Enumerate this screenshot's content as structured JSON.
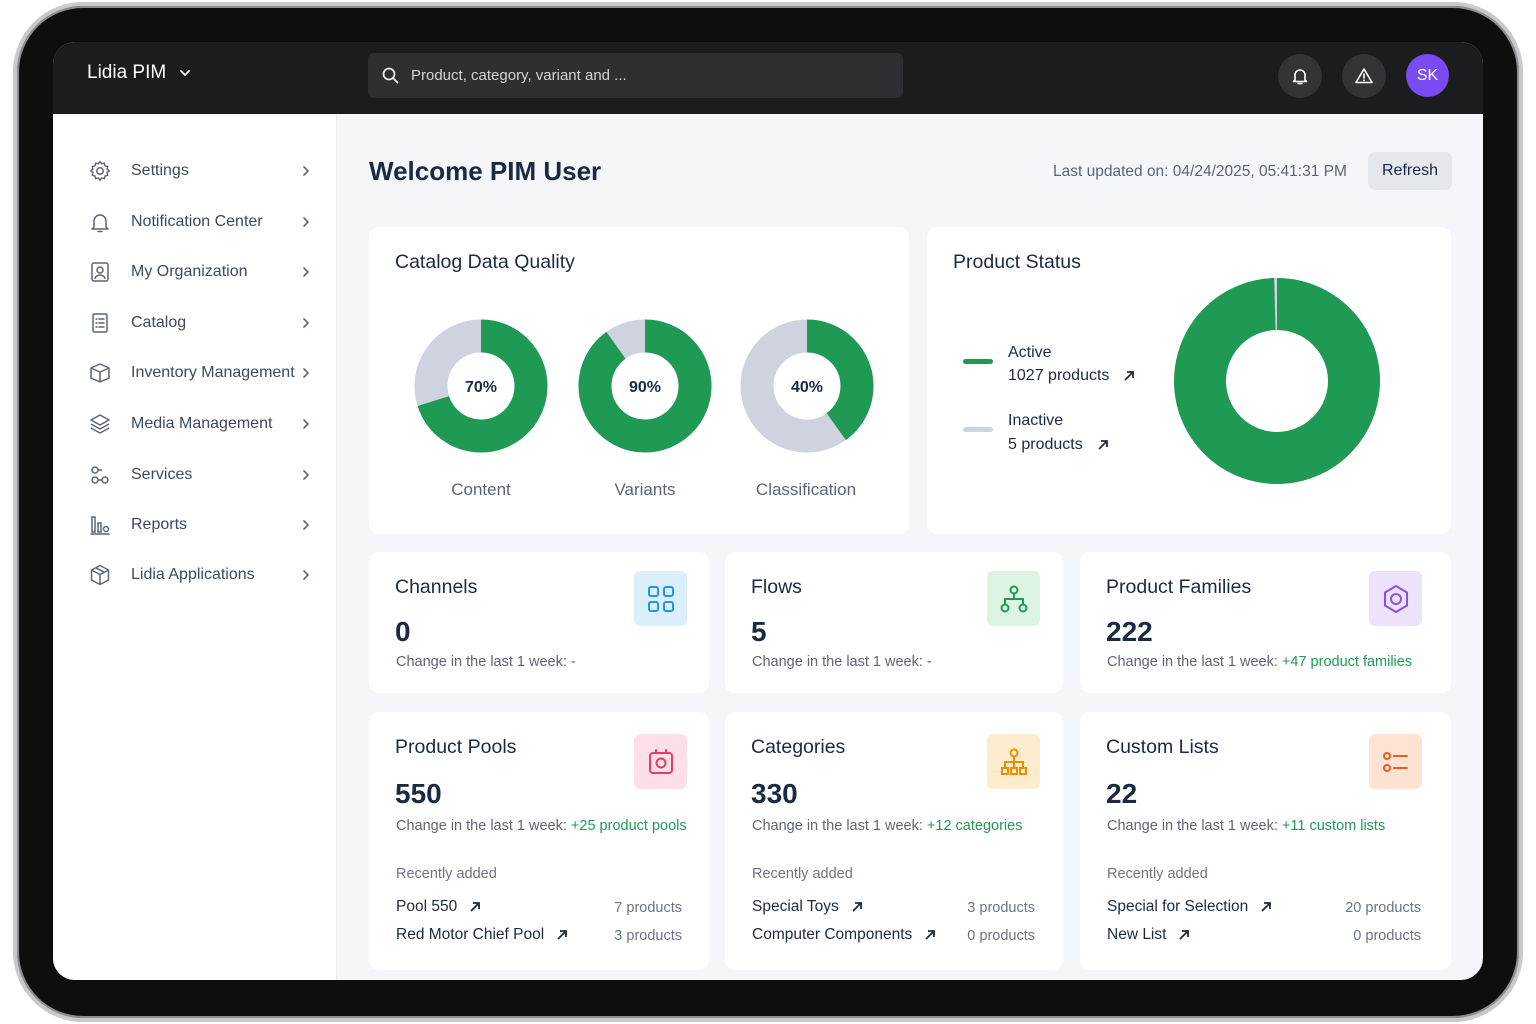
{
  "app": {
    "name": "Lidia PIM"
  },
  "search": {
    "placeholder": "Product, category, variant and ..."
  },
  "user": {
    "initials": "SK"
  },
  "sidebar": {
    "items": [
      {
        "label": "Settings",
        "icon": "gear-icon"
      },
      {
        "label": "Notification Center",
        "icon": "bell-icon"
      },
      {
        "label": "My Organization",
        "icon": "organization-icon"
      },
      {
        "label": "Catalog",
        "icon": "catalog-icon"
      },
      {
        "label": "Inventory Management",
        "icon": "box-icon"
      },
      {
        "label": "Media Management",
        "icon": "layers-icon"
      },
      {
        "label": "Services",
        "icon": "services-icon"
      },
      {
        "label": "Reports",
        "icon": "reports-icon"
      },
      {
        "label": "Lidia Applications",
        "icon": "cube-icon"
      }
    ]
  },
  "header": {
    "title": "Welcome PIM User",
    "last_updated": "Last updated on: 04/24/2025, 05:41:31 PM",
    "refresh_label": "Refresh"
  },
  "colors": {
    "green": "#1f9a55",
    "grey": "#ced3df"
  },
  "quality": {
    "title": "Catalog Data Quality",
    "items": [
      {
        "label": "Content",
        "percent": 70,
        "text": "70%"
      },
      {
        "label": "Variants",
        "percent": 90,
        "text": "90%"
      },
      {
        "label": "Classification",
        "percent": 40,
        "text": "40%"
      }
    ]
  },
  "status": {
    "title": "Product Status",
    "active": {
      "label": "Active",
      "count": "1027 products",
      "value": 1027
    },
    "inactive": {
      "label": "Inactive",
      "count": "5 products",
      "value": 5
    }
  },
  "stats": {
    "channels": {
      "title": "Channels",
      "value": "0",
      "change_prefix": "Change in the last 1 week: ",
      "change_value": "-"
    },
    "flows": {
      "title": "Flows",
      "value": "5",
      "change_prefix": "Change in the last 1 week: ",
      "change_value": "-"
    },
    "families": {
      "title": "Product Families",
      "value": "222",
      "change_prefix": "Change in the last 1 week: ",
      "change_value": "+47 product families"
    },
    "pools": {
      "title": "Product Pools",
      "value": "550",
      "change_prefix": "Change in the last 1 week: ",
      "change_value": "+25 product pools",
      "recent_label": "Recently added",
      "recent": [
        {
          "name": "Pool 550",
          "count": "7 products"
        },
        {
          "name": "Red Motor Chief Pool",
          "count": "3 products"
        }
      ]
    },
    "categories": {
      "title": "Categories",
      "value": "330",
      "change_prefix": "Change in the last 1 week: ",
      "change_value": "+12 categories",
      "recent_label": "Recently added",
      "recent": [
        {
          "name": "Special Toys",
          "count": "3 products"
        },
        {
          "name": "Computer Components",
          "count": "0 products"
        }
      ]
    },
    "lists": {
      "title": "Custom Lists",
      "value": "22",
      "change_prefix": "Change in the last 1 week: ",
      "change_value": "+11 custom lists",
      "recent_label": "Recently added",
      "recent": [
        {
          "name": "Special for Selection",
          "count": "20 products"
        },
        {
          "name": "New List",
          "count": "0 products"
        }
      ]
    }
  }
}
